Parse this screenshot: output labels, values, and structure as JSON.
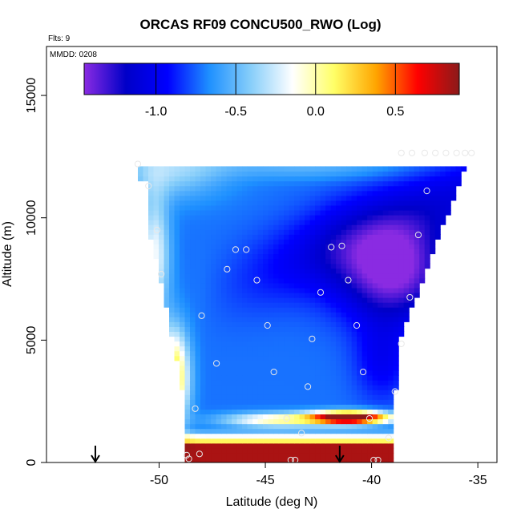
{
  "chart_data": {
    "type": "heatmap",
    "title": "ORCAS RF09 CONCU500_RWO (Log)",
    "flights_label": "Flts: 9",
    "date_label": "MMDD: 0208",
    "xlabel": "Latitude (deg N)",
    "ylabel": "Altitude (m)",
    "xlim": [
      -55.3,
      -34.1
    ],
    "ylim": [
      0,
      17000
    ],
    "x_ticks": [
      {
        "value": -50,
        "label": "-50"
      },
      {
        "value": -45,
        "label": "-45"
      },
      {
        "value": -40,
        "label": "-40"
      },
      {
        "value": -35,
        "label": "-35"
      }
    ],
    "y_ticks": [
      {
        "value": 0,
        "label": "0"
      },
      {
        "value": 5000,
        "label": "5000"
      },
      {
        "value": 10000,
        "label": "10000"
      },
      {
        "value": 15000,
        "label": "15000"
      }
    ],
    "colorbar": {
      "range": [
        -1.45,
        0.9
      ],
      "colors": [
        "#8a2be2",
        "#0000c8",
        "#0000ff",
        "#1e90ff",
        "#87cefa",
        "#ffffff",
        "#ffff66",
        "#ffa500",
        "#ff0000",
        "#8b1a1a"
      ],
      "ticks": [
        {
          "value": -1.0,
          "label": "-1.0"
        },
        {
          "value": -0.5,
          "label": "-0.5"
        },
        {
          "value": 0.0,
          "label": "0.0"
        },
        {
          "value": 0.5,
          "label": "0.5"
        }
      ]
    },
    "field": {
      "xrange": [
        -51.0,
        -35.3
      ],
      "yrange": [
        0,
        12700
      ],
      "nx": 64,
      "ny": 64
    },
    "arrows": [
      -53.0,
      -41.5
    ],
    "points": [
      {
        "x": -51.0,
        "y": 12200
      },
      {
        "x": -50.5,
        "y": 11300
      },
      {
        "x": -50.1,
        "y": 9500
      },
      {
        "x": -49.9,
        "y": 7700
      },
      {
        "x": -48.0,
        "y": 6000
      },
      {
        "x": -47.3,
        "y": 4050
      },
      {
        "x": -48.3,
        "y": 2200
      },
      {
        "x": -48.7,
        "y": 300
      },
      {
        "x": -48.6,
        "y": 150
      },
      {
        "x": -48.1,
        "y": 350
      },
      {
        "x": -46.8,
        "y": 7900
      },
      {
        "x": -46.4,
        "y": 8700
      },
      {
        "x": -45.9,
        "y": 8700
      },
      {
        "x": -45.4,
        "y": 7450
      },
      {
        "x": -44.9,
        "y": 5600
      },
      {
        "x": -44.6,
        "y": 3700
      },
      {
        "x": -44.0,
        "y": 1800
      },
      {
        "x": -43.8,
        "y": 100
      },
      {
        "x": -43.6,
        "y": 100
      },
      {
        "x": -43.3,
        "y": 1200
      },
      {
        "x": -43.0,
        "y": 3100
      },
      {
        "x": -42.8,
        "y": 5050
      },
      {
        "x": -42.4,
        "y": 6950
      },
      {
        "x": -41.9,
        "y": 8800
      },
      {
        "x": -41.4,
        "y": 8850
      },
      {
        "x": -41.1,
        "y": 7450
      },
      {
        "x": -40.7,
        "y": 5600
      },
      {
        "x": -40.4,
        "y": 3700
      },
      {
        "x": -40.1,
        "y": 1800
      },
      {
        "x": -39.9,
        "y": 100
      },
      {
        "x": -39.7,
        "y": 100
      },
      {
        "x": -39.2,
        "y": 1000
      },
      {
        "x": -38.9,
        "y": 2900
      },
      {
        "x": -38.6,
        "y": 4850
      },
      {
        "x": -38.2,
        "y": 6750
      },
      {
        "x": -37.8,
        "y": 9300
      },
      {
        "x": -37.4,
        "y": 11100
      },
      {
        "x": -38.6,
        "y": 12650
      },
      {
        "x": -38.1,
        "y": 12650
      },
      {
        "x": -37.5,
        "y": 12650
      },
      {
        "x": -37.0,
        "y": 12650
      },
      {
        "x": -36.5,
        "y": 12650
      },
      {
        "x": -36.0,
        "y": 12650
      },
      {
        "x": -35.6,
        "y": 12650
      },
      {
        "x": -35.3,
        "y": 12650
      }
    ]
  }
}
